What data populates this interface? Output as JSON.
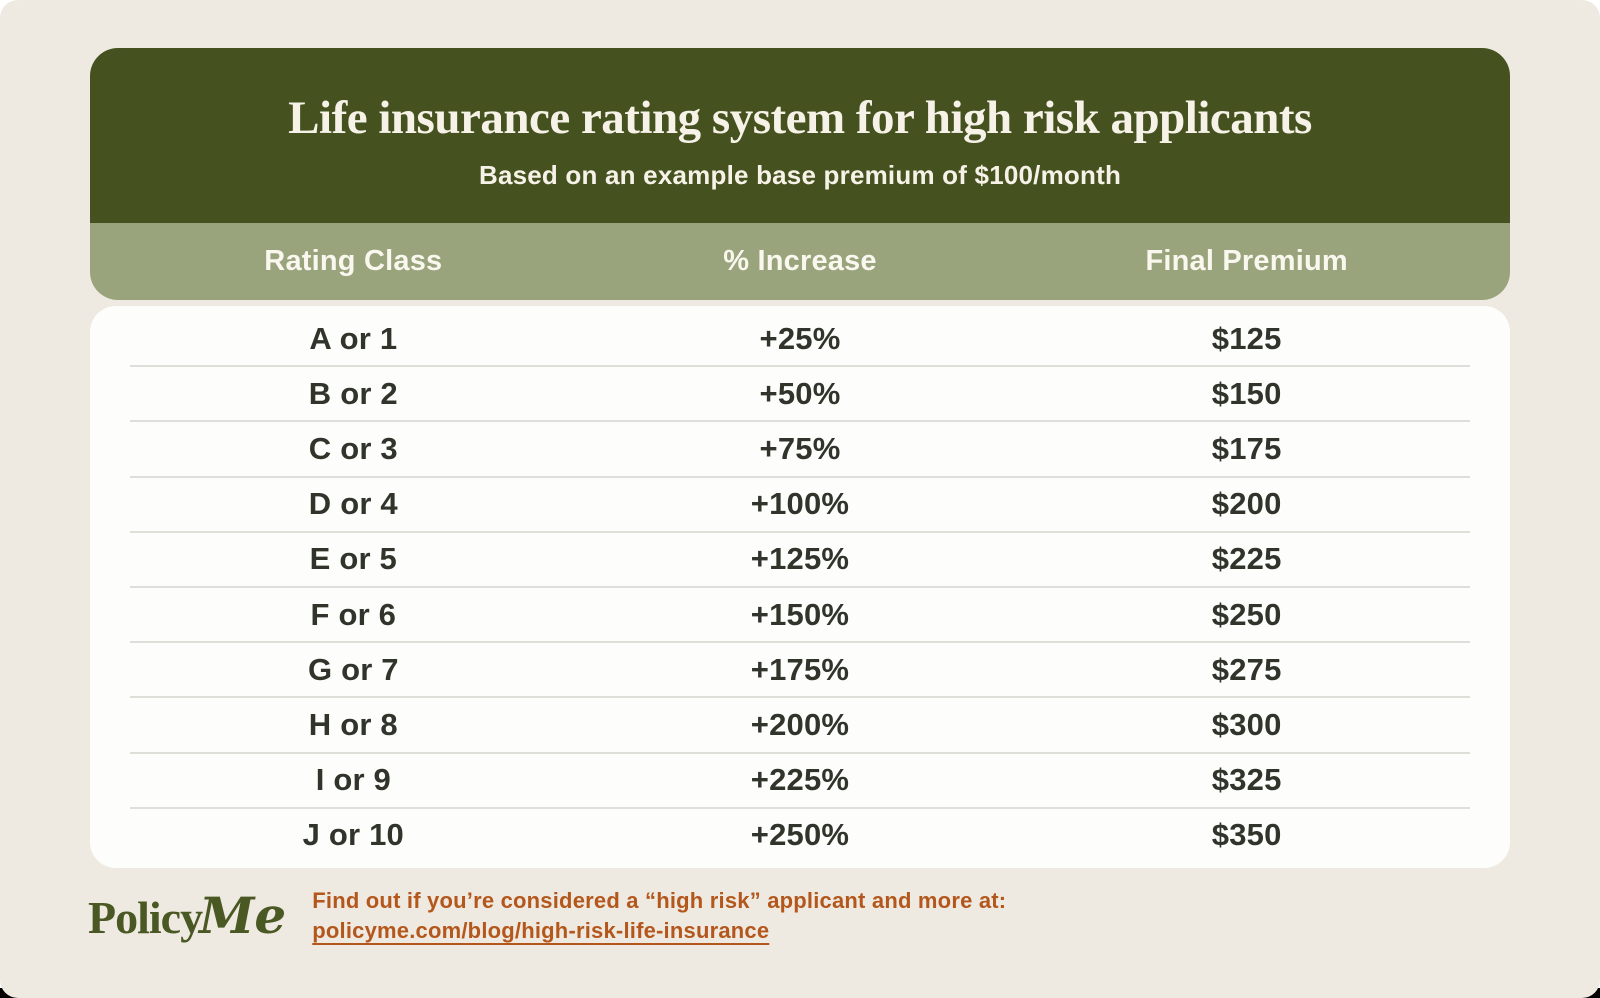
{
  "chart_data": {
    "type": "table",
    "title": "Life insurance rating system for high risk applicants",
    "subtitle": "Based on an example base premium of $100/month",
    "columns": [
      "Rating Class",
      "% Increase",
      "Final Premium"
    ],
    "rows": [
      [
        "A or 1",
        "+25%",
        "$125"
      ],
      [
        "B or 2",
        "+50%",
        "$150"
      ],
      [
        "C or 3",
        "+75%",
        "$175"
      ],
      [
        "D or 4",
        "+100%",
        "$200"
      ],
      [
        "E or 5",
        "+125%",
        "$225"
      ],
      [
        "F or 6",
        "+150%",
        "$250"
      ],
      [
        "G or 7",
        "+175%",
        "$275"
      ],
      [
        "H or 8",
        "+200%",
        "$300"
      ],
      [
        "I or 9",
        "+225%",
        "$325"
      ],
      [
        "J or 10",
        "+250%",
        "$350"
      ]
    ],
    "base_premium_per_month": 100,
    "increase_percent": [
      25,
      50,
      75,
      100,
      125,
      150,
      175,
      200,
      225,
      250
    ],
    "final_premium_dollars": [
      125,
      150,
      175,
      200,
      225,
      250,
      275,
      300,
      325,
      350
    ]
  },
  "footer": {
    "logo_policy": "Policy",
    "logo_me": "Me",
    "cta_text": "Find out if you’re considered a “high risk” applicant and more at:",
    "cta_link": "policyme.com/blog/high-risk-life-insurance"
  },
  "colors": {
    "background": "#EFEAE1",
    "header_green": "#45521F",
    "column_sage": "#99A47D",
    "card_white": "#FDFDFC",
    "text_dark": "#30342A",
    "accent_orange": "#B4571D",
    "logo_green": "#4A5824"
  }
}
